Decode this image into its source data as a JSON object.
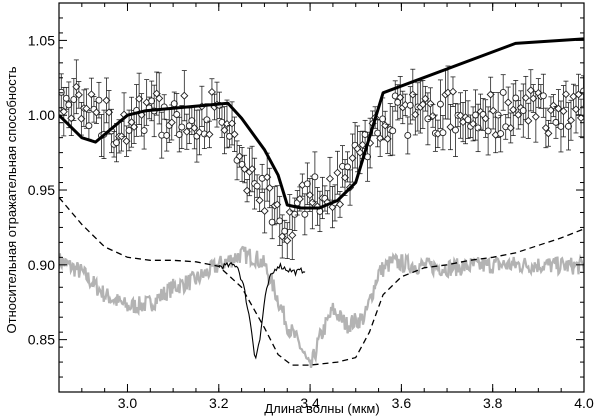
{
  "chart_data": {
    "type": "scatter",
    "title": "",
    "xlabel": "Длина волны (мкм)",
    "ylabel": "Относительная отражательная способность",
    "xlim": [
      2.85,
      4.0
    ],
    "ylim": [
      0.815,
      1.075
    ],
    "grid": false,
    "legend": "none",
    "xticks": [
      {
        "value": 3.0,
        "label": "3.0"
      },
      {
        "value": 3.2,
        "label": "3.2"
      },
      {
        "value": 3.4,
        "label": "3.4"
      },
      {
        "value": 3.6,
        "label": "3.6"
      },
      {
        "value": 3.8,
        "label": "3.8"
      },
      {
        "value": 4.0,
        "label": "4.0"
      }
    ],
    "yticks": [
      {
        "value": 0.85,
        "label": "0.85"
      },
      {
        "value": 0.9,
        "label": "0.90"
      },
      {
        "value": 0.95,
        "label": "0.95"
      },
      {
        "value": 1.0,
        "label": "1.00"
      },
      {
        "value": 1.05,
        "label": "1.05"
      }
    ],
    "observed_trend": {
      "x": [
        2.85,
        2.9,
        2.95,
        3.0,
        3.05,
        3.1,
        3.15,
        3.2,
        3.23,
        3.26,
        3.29,
        3.31,
        3.33,
        3.35,
        3.38,
        3.41,
        3.44,
        3.47,
        3.5,
        3.53,
        3.56,
        3.6,
        3.65,
        3.7,
        3.75,
        3.8,
        3.85,
        3.9,
        3.95,
        4.0
      ],
      "y": [
        1.0,
        1.008,
        0.998,
        0.992,
        1.002,
        0.998,
        1.0,
        1.002,
        0.98,
        0.962,
        0.955,
        0.945,
        0.935,
        0.93,
        0.94,
        0.945,
        0.95,
        0.955,
        0.97,
        0.985,
        0.995,
        1.0,
        1.0,
        1.002,
        0.998,
        1.002,
        1.0,
        1.003,
        1.002,
        1.01
      ],
      "err": 0.012
    },
    "series": [
      {
        "color": "#000000",
        "style": "solid-thick",
        "x": [
          2.85,
          2.9,
          2.93,
          3.0,
          3.04,
          3.22,
          3.25,
          3.3,
          3.33,
          3.35,
          3.38,
          3.42,
          3.46,
          3.5,
          3.56,
          3.85,
          4.0
        ],
        "y": [
          1.0,
          0.985,
          0.982,
          1.0,
          1.003,
          1.008,
          0.998,
          0.977,
          0.96,
          0.94,
          0.938,
          0.938,
          0.943,
          0.955,
          1.015,
          1.048,
          1.051
        ]
      },
      {
        "color": "#000000",
        "style": "dashed",
        "x": [
          2.85,
          2.9,
          2.95,
          3.0,
          3.05,
          3.1,
          3.15,
          3.2,
          3.25,
          3.3,
          3.33,
          3.36,
          3.4,
          3.46,
          3.5,
          3.53,
          3.56,
          3.6,
          3.65,
          3.7,
          3.75,
          3.8,
          3.85,
          3.9,
          3.95,
          4.0
        ],
        "y": [
          0.945,
          0.927,
          0.912,
          0.905,
          0.903,
          0.903,
          0.902,
          0.899,
          0.885,
          0.858,
          0.84,
          0.833,
          0.833,
          0.835,
          0.838,
          0.855,
          0.88,
          0.892,
          0.898,
          0.9,
          0.903,
          0.905,
          0.908,
          0.913,
          0.918,
          0.924
        ]
      },
      {
        "color": "#000000",
        "style": "solid-thin",
        "x": [
          3.2,
          3.24,
          3.255,
          3.27,
          3.28,
          3.29,
          3.3,
          3.31,
          3.33,
          3.35,
          3.37,
          3.39
        ],
        "y": [
          0.899,
          0.9,
          0.885,
          0.86,
          0.837,
          0.85,
          0.875,
          0.89,
          0.9,
          0.897,
          0.895,
          0.897
        ]
      },
      {
        "color": "#b3b3b3",
        "style": "solid-gray",
        "x": [
          2.85,
          2.9,
          2.95,
          3.0,
          3.05,
          3.1,
          3.15,
          3.2,
          3.25,
          3.28,
          3.3,
          3.32,
          3.35,
          3.38,
          3.4,
          3.42,
          3.45,
          3.48,
          3.52,
          3.55,
          3.58,
          3.62,
          3.7,
          3.8,
          3.9,
          4.0
        ],
        "y": [
          0.903,
          0.895,
          0.88,
          0.872,
          0.874,
          0.885,
          0.89,
          0.9,
          0.907,
          0.905,
          0.9,
          0.885,
          0.86,
          0.845,
          0.83,
          0.85,
          0.87,
          0.86,
          0.865,
          0.895,
          0.902,
          0.9,
          0.898,
          0.9,
          0.9,
          0.899
        ]
      }
    ]
  }
}
